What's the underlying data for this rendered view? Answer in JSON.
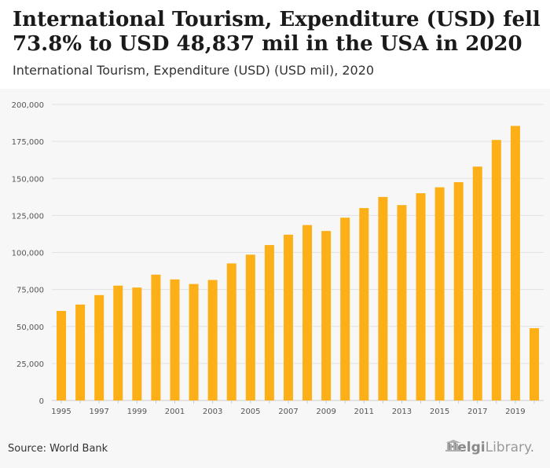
{
  "header": {
    "title": "International Tourism, Expenditure (USD) fell 73.8% to USD 48,837 mil in the USA in 2020",
    "subtitle": "International Tourism, Expenditure (USD) (USD mil), 2020"
  },
  "footer": {
    "source": "Source: World Bank",
    "logo_text_bold": "Helgi",
    "logo_text": "Library."
  },
  "colors": {
    "bar": "#FCAF17",
    "grid": "#e2e2e2",
    "axis_text": "#555555"
  },
  "chart_data": {
    "type": "bar",
    "title": "International Tourism, Expenditure (USD) (USD mil), 2020",
    "xlabel": "",
    "ylabel": "",
    "ylim": [
      0,
      200000
    ],
    "yticks": [
      "0",
      "25,000",
      "50,000",
      "75,000",
      "100,000",
      "125,000",
      "150,000",
      "175,000",
      "200,000"
    ],
    "ytick_values": [
      0,
      25000,
      50000,
      75000,
      100000,
      125000,
      150000,
      175000,
      200000
    ],
    "categories": [
      "1995",
      "1996",
      "1997",
      "1998",
      "1999",
      "2000",
      "2001",
      "2002",
      "2003",
      "2004",
      "2005",
      "2006",
      "2007",
      "2008",
      "2009",
      "2010",
      "2011",
      "2012",
      "2013",
      "2014",
      "2015",
      "2016",
      "2017",
      "2018",
      "2019",
      "2020"
    ],
    "xtick_labels_shown": [
      "1995",
      "1997",
      "1999",
      "2001",
      "2003",
      "2005",
      "2007",
      "2009",
      "2011",
      "2013",
      "2015",
      "2017",
      "2019"
    ],
    "values": [
      60500,
      64800,
      71200,
      77600,
      76300,
      85000,
      81800,
      78700,
      81400,
      92600,
      98500,
      105000,
      112000,
      118500,
      114500,
      123500,
      130000,
      137500,
      132000,
      140000,
      144000,
      147500,
      158000,
      176000,
      185500,
      48837
    ]
  }
}
